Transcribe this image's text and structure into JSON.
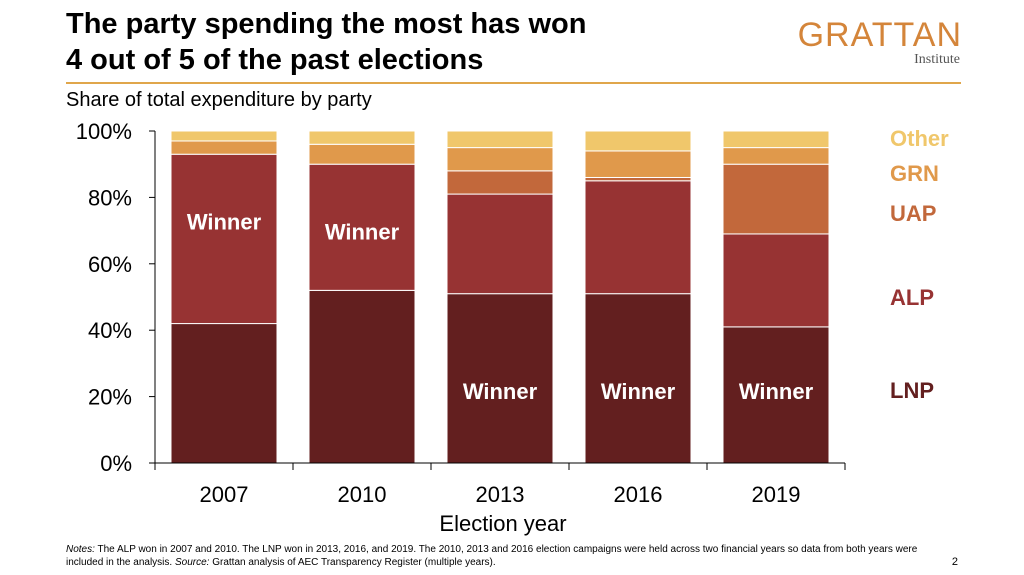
{
  "slide": {
    "title_line1": "The party spending the most has won",
    "title_line2": "4 out of 5 of the past elections",
    "logo_main": "GRATTAN",
    "logo_sub": "Institute",
    "page_number": "2",
    "notes_label": "Notes:",
    "notes_text_1": " The ALP won in 2007 and 2010. The LNP won in 2013, 2016, and 2019. The 2010, 2013 and 2016 election campaigns were held across two financial years so data from both years were included in the analysis. ",
    "source_label": "Source:",
    "source_text": " Grattan analysis of AEC Transparency Register (multiple years)."
  },
  "chart_data": {
    "type": "bar",
    "stacked": true,
    "subtitle": "Share of total expenditure by party",
    "xlabel": "Election year",
    "ylabel": "",
    "ylim": [
      0,
      100
    ],
    "yticks": [
      "0%",
      "20%",
      "40%",
      "60%",
      "80%",
      "100%"
    ],
    "categories": [
      "2007",
      "2010",
      "2013",
      "2016",
      "2019"
    ],
    "series": [
      {
        "name": "LNP",
        "color": "#631f1f",
        "values": [
          42,
          52,
          51,
          51,
          41
        ]
      },
      {
        "name": "ALP",
        "color": "#973333",
        "values": [
          51,
          38,
          30,
          34,
          28
        ]
      },
      {
        "name": "UAP",
        "color": "#c2683b",
        "values": [
          0,
          0,
          7,
          1,
          21
        ]
      },
      {
        "name": "GRN",
        "color": "#e0994b",
        "values": [
          4,
          6,
          7,
          8,
          5
        ]
      },
      {
        "name": "Other",
        "color": "#f0c76b",
        "values": [
          3,
          4,
          5,
          6,
          5
        ]
      }
    ],
    "winner_label": "Winner",
    "winners": [
      "ALP",
      "ALP",
      "LNP",
      "LNP",
      "LNP"
    ],
    "legend_position": "right",
    "grid": false
  }
}
